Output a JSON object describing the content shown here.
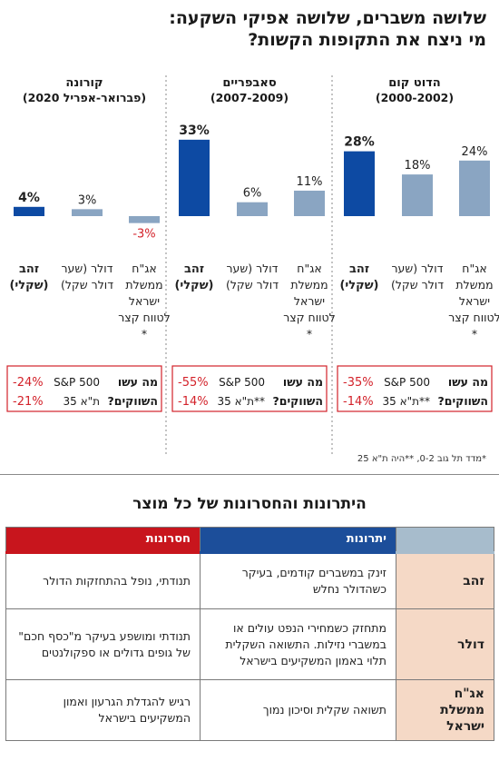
{
  "title": {
    "line1": "שלושה משברים, שלושה אפיקי השקעה:",
    "line2": "מי ניצח את התקופות הקשות?"
  },
  "colors": {
    "gold": "#0d4aa3",
    "other": "#8aa5c2",
    "negative": "#d3222a",
    "divider": "#8a8a8a",
    "header_pro": "#1c4e9a",
    "header_con": "#c8151d",
    "product_cell": "#f5d9c6"
  },
  "chart_data": [
    {
      "type": "bar",
      "title": "הדוט קום",
      "subtitle": "(2000-2002)",
      "categories": [
        "אג\"ח ממשלת ישראל לטווח קצר *",
        "דולר (שער דולר שקל)",
        "זהב (שקלי)"
      ],
      "values": [
        24,
        18,
        28
      ],
      "value_labels": [
        "24%",
        "18%",
        "28%"
      ],
      "highlight_index": 2,
      "market": {
        "question": "מה עשו השווקים?",
        "rows": [
          {
            "name": "S&P 500",
            "value": -35,
            "label": "-35%"
          },
          {
            "name": "ת\"א 35**",
            "value": -14,
            "label": "-14%"
          }
        ]
      }
    },
    {
      "type": "bar",
      "title": "סאבפריים",
      "subtitle": "(2007-2009)",
      "categories": [
        "אג\"ח ממשלת ישראל לטווח קצר *",
        "דולר (שער דולר שקל)",
        "זהב (שקלי)"
      ],
      "values": [
        11,
        6,
        33
      ],
      "value_labels": [
        "11%",
        "6%",
        "33%"
      ],
      "highlight_index": 2,
      "market": {
        "question": "מה עשו השווקים?",
        "rows": [
          {
            "name": "S&P 500",
            "value": -55,
            "label": "-55%"
          },
          {
            "name": "ת\"א 35**",
            "value": -14,
            "label": "-14%"
          }
        ]
      }
    },
    {
      "type": "bar",
      "title": "קורונה",
      "subtitle": "(פברואר-אפריל 2020)",
      "categories": [
        "אג\"ח ממשלת ישראל לטווח קצר *",
        "דולר (שער דולר שקל)",
        "זהב (שקלי)"
      ],
      "values": [
        -3,
        3,
        4
      ],
      "value_labels": [
        "-3%",
        "3%",
        "4%"
      ],
      "highlight_index": 2,
      "market": {
        "question": "מה עשו השווקים?",
        "rows": [
          {
            "name": "S&P 500",
            "value": -24,
            "label": "-24%"
          },
          {
            "name": "ת\"א 35",
            "value": -21,
            "label": "-21%"
          }
        ]
      }
    }
  ],
  "category_lines": {
    "bond": [
      "אג\"ח",
      "ממשלת",
      "ישראל",
      "לטווח קצר",
      "*"
    ],
    "dollar": [
      "דולר (שער",
      "דולר שקל)"
    ],
    "gold": [
      "זהב",
      "(שקלי)"
    ]
  },
  "footnote": "*מדד תל גוב 0-2,  **היה ת\"א 25",
  "table": {
    "title": "היתרונות והחסרונות של כל מוצר",
    "headers": {
      "pros": "יתרונות",
      "cons": "חסרונות"
    },
    "rows": [
      {
        "product": "זהב",
        "pros": "זינק במשברים קודמים, בעיקר כשהדולר נחלש",
        "cons": "תנודתי, נופל בהתחזקות הדולר"
      },
      {
        "product": "דולר",
        "pros": "מתחזק כשמחירי הנפט עולים או במשברי נזילות. התשואה השקלית תלוי באמון המשקיעים בישראל",
        "cons": "תנודתי ומושפע בעיקר מ\"כסף חכם\" של גופים גדולים או ספקולנטים"
      },
      {
        "product": "אג\"ח ממשלת ישראל",
        "pros": "תשואה שקלית וסיכון נמוך",
        "cons": "רגיש להגדלת הגרעון ואמון המשקיעים בישראל"
      }
    ]
  }
}
